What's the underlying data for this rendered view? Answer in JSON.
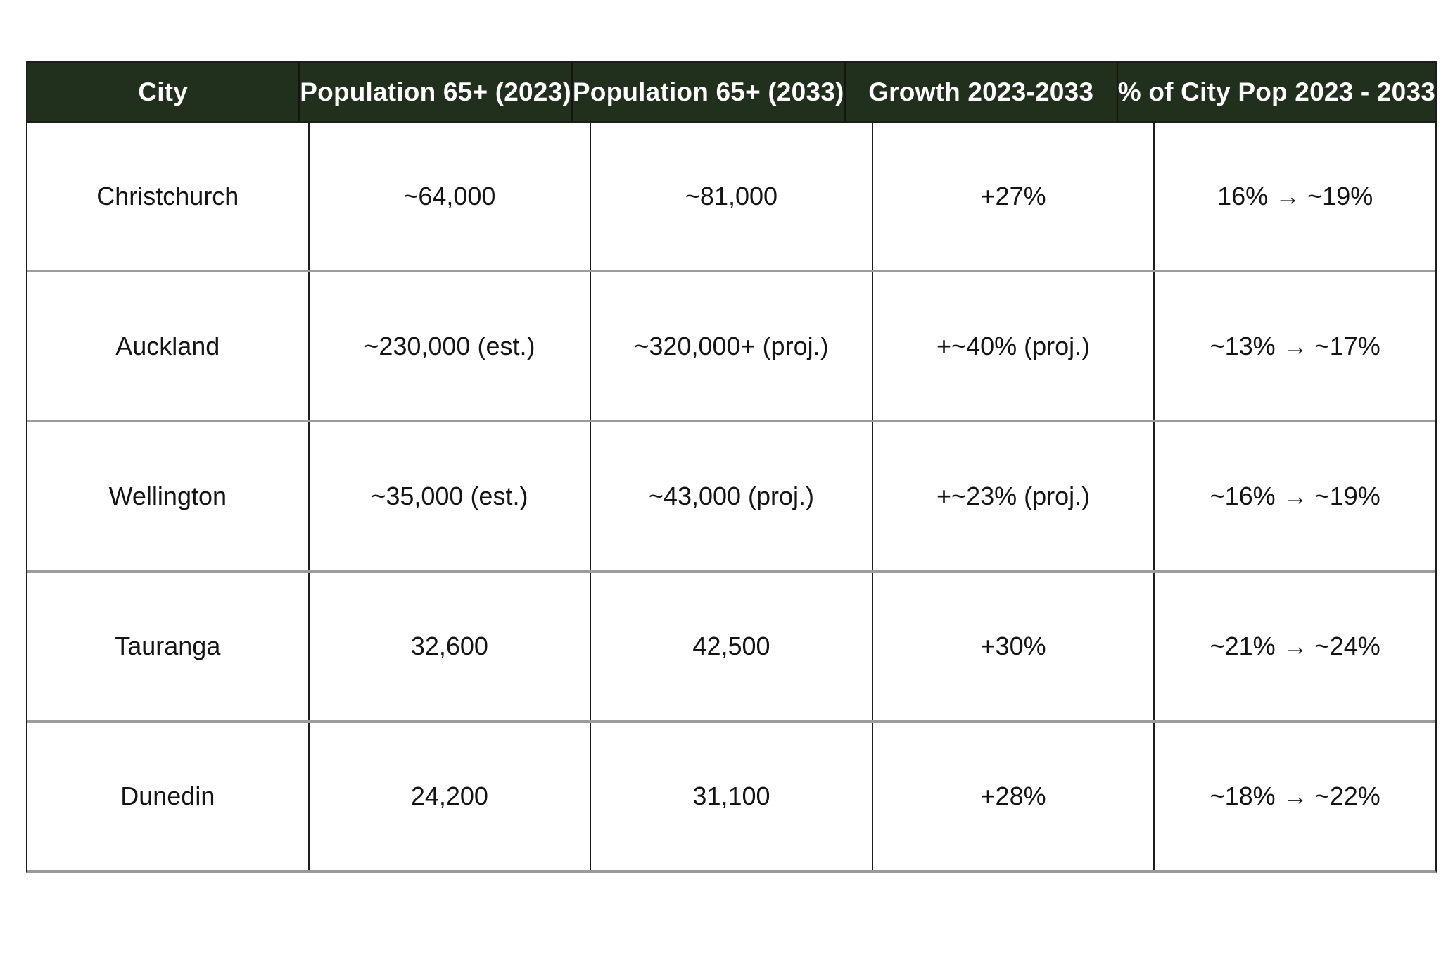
{
  "colors": {
    "header_bg": "#20301c",
    "header_text": "#ffffff",
    "body_text": "#141414",
    "vertical_border": "#1d1d1d",
    "horizontal_border": "#9a9a9a",
    "page_bg": "#ffffff"
  },
  "table": {
    "columns": [
      "City",
      "Population 65+ (2023)",
      "Population 65+ (2033)",
      "Growth 2023-2033",
      "% of City Pop 2023 - 2033"
    ],
    "rows": [
      [
        "Christchurch",
        "~64,000",
        "~81,000",
        "+27%",
        "16% → ~19%"
      ],
      [
        "Auckland",
        "~230,000 (est.)",
        "~320,000+ (proj.)",
        "+~40% (proj.)",
        "~13% → ~17%"
      ],
      [
        "Wellington",
        "~35,000 (est.)",
        "~43,000 (proj.)",
        "+~23% (proj.)",
        "~16% → ~19%"
      ],
      [
        "Tauranga",
        "32,600",
        "42,500",
        "+30%",
        "~21% → ~24%"
      ],
      [
        "Dunedin",
        "24,200",
        "31,100",
        "+28%",
        "~18% → ~22%"
      ]
    ]
  },
  "chart_data": {
    "type": "table",
    "columns": [
      "City",
      "Population 65+ (2023)",
      "Population 65+ (2033)",
      "Growth 2023-2033",
      "% of City Pop 2023 - 2033"
    ],
    "rows": [
      [
        "Christchurch",
        "~64,000",
        "~81,000",
        "+27%",
        "16% → ~19%"
      ],
      [
        "Auckland",
        "~230,000 (est.)",
        "~320,000+ (proj.)",
        "+~40% (proj.)",
        "~13% → ~17%"
      ],
      [
        "Wellington",
        "~35,000 (est.)",
        "~43,000 (proj.)",
        "+~23% (proj.)",
        "~16% → ~19%"
      ],
      [
        "Tauranga",
        "32,600",
        "42,500",
        "+30%",
        "~21% → ~24%"
      ],
      [
        "Dunedin",
        "24,200",
        "31,100",
        "+28%",
        "~18% → ~22%"
      ]
    ],
    "parsed_numeric": {
      "cities": [
        "Christchurch",
        "Auckland",
        "Wellington",
        "Tauranga",
        "Dunedin"
      ],
      "pop_65_2023": [
        64000,
        230000,
        35000,
        32600,
        24200
      ],
      "pop_65_2033": [
        81000,
        320000,
        43000,
        42500,
        31100
      ],
      "growth_pct_2023_2033": [
        27,
        40,
        23,
        30,
        28
      ],
      "pct_of_city_pop_2023": [
        16,
        13,
        16,
        21,
        18
      ],
      "pct_of_city_pop_2033": [
        19,
        17,
        19,
        24,
        22
      ]
    }
  }
}
